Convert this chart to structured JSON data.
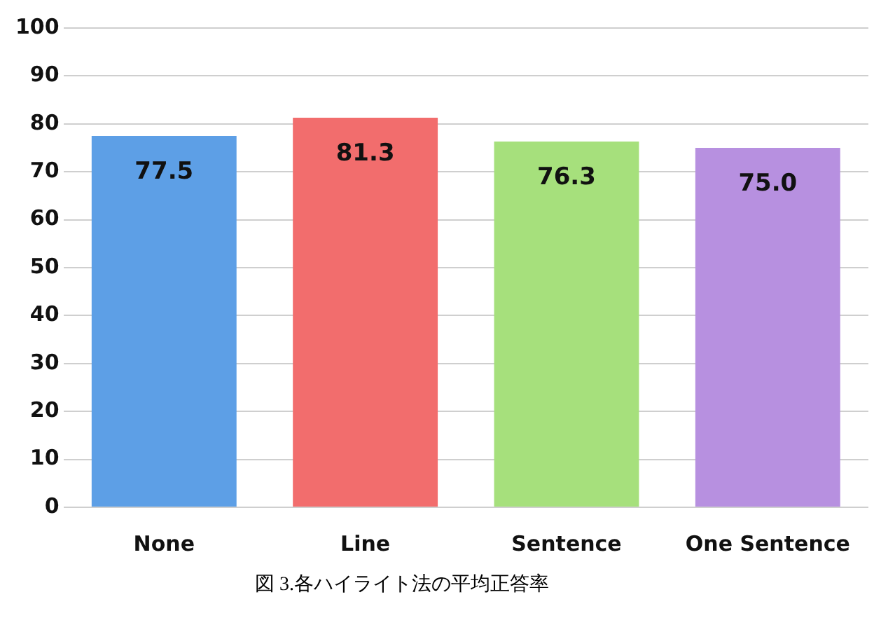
{
  "chart_data": {
    "type": "bar",
    "categories": [
      "None",
      "Line",
      "Sentence",
      "One Sentence"
    ],
    "values": [
      77.5,
      81.3,
      76.3,
      75.0
    ],
    "colors": [
      "#5d9fe6",
      "#f26d6d",
      "#a6e07c",
      "#b790e0"
    ],
    "value_labels": [
      "77.5",
      "81.3",
      "76.3",
      "75.0"
    ],
    "ylim": [
      0,
      100
    ],
    "yticks": [
      0,
      10,
      20,
      30,
      40,
      50,
      60,
      70,
      80,
      90,
      100
    ],
    "grid": "y",
    "legend": false,
    "annotations": [
      "図 3.各ハイライト法の平均正答率"
    ]
  }
}
